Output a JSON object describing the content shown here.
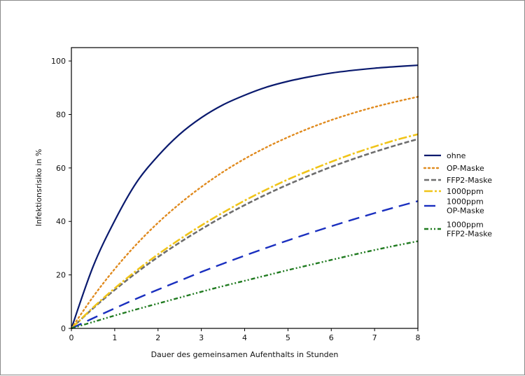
{
  "chart_data": {
    "type": "line",
    "xlabel": "Dauer des gemeinsamen Aufenthalts in Stunden",
    "ylabel": "Infektionsrisiko in %",
    "xlim": [
      0,
      8
    ],
    "ylim": [
      0,
      105
    ],
    "x_ticks": [
      "0",
      "1",
      "2",
      "3",
      "4",
      "5",
      "6",
      "7",
      "8"
    ],
    "y_ticks": [
      "0",
      "20",
      "40",
      "60",
      "80",
      "100"
    ],
    "grid": false,
    "legend_position": "right, outside plot",
    "x": [
      0,
      0.5,
      1,
      1.5,
      2,
      2.5,
      3,
      3.5,
      4,
      4.5,
      5,
      5.5,
      6,
      6.5,
      7,
      7.5,
      8
    ],
    "series": [
      {
        "name": "ohne",
        "color": "#0a1a6e",
        "dash": "solid",
        "values": [
          0,
          23.1,
          40.3,
          54.5,
          64.5,
          72.6,
          78.8,
          83.6,
          87.2,
          90.2,
          92.4,
          94.1,
          95.5,
          96.5,
          97.3,
          97.9,
          98.4
        ]
      },
      {
        "name": "OP-Maske",
        "color": "#e08a1e",
        "dash": "dotted",
        "values": [
          0,
          11.8,
          22.2,
          31.4,
          39.5,
          46.6,
          52.9,
          58.5,
          63.4,
          67.7,
          71.5,
          74.9,
          77.9,
          80.5,
          82.8,
          84.8,
          86.6
        ]
      },
      {
        "name": "FFP2-Maske",
        "color": "#6e6e6e",
        "dash": "dashed",
        "values": [
          0,
          7.5,
          14.4,
          20.8,
          26.7,
          32.1,
          37.1,
          41.8,
          46.1,
          50.1,
          53.8,
          57.2,
          60.4,
          63.3,
          66.0,
          68.5,
          70.8
        ]
      },
      {
        "name": "1000ppm",
        "color": "#f0c419",
        "dash": "dashdot",
        "values": [
          0,
          7.8,
          15.0,
          21.6,
          27.7,
          33.3,
          38.5,
          43.3,
          47.8,
          51.9,
          55.7,
          59.1,
          62.3,
          65.3,
          68.0,
          70.5,
          72.6
        ]
      },
      {
        "name": "1000ppm\nOP-Maske",
        "color": "#1a2fbf",
        "dash": "longdash",
        "values": [
          0,
          3.8,
          7.5,
          11.1,
          14.5,
          17.8,
          21.1,
          24.2,
          27.2,
          30.1,
          32.9,
          35.6,
          38.2,
          40.7,
          43.1,
          45.4,
          47.6
        ]
      },
      {
        "name": "1000ppm\nFFP2-Maske",
        "color": "#1f7a1f",
        "dash": "dashdotdot",
        "values": [
          0,
          2.4,
          4.8,
          7.1,
          9.3,
          11.5,
          13.7,
          15.8,
          17.8,
          19.8,
          21.8,
          23.7,
          25.6,
          27.5,
          29.3,
          31.0,
          32.6
        ]
      }
    ]
  }
}
